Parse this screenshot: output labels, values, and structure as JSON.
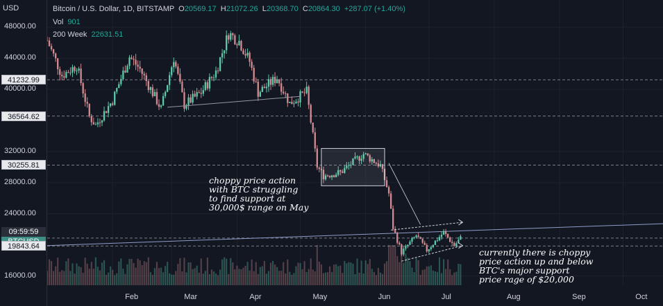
{
  "header": {
    "currency": "USD",
    "symbol_line": "Bitcoin / U.S. Dollar, 1D, BITSTAMP",
    "ohlc": {
      "O": "20569.17",
      "H": "21072.26",
      "L": "20368.70",
      "C": "20864.30",
      "change": "+287.07 (+1.40%)"
    },
    "vol_label": "Vol",
    "vol_value": "901",
    "ma_label": "200 Week",
    "ma_value": "22631.51"
  },
  "tags": [
    {
      "label": "41232.99",
      "price": 41232.99,
      "style": "light"
    },
    {
      "label": "36564.62",
      "price": 36564.62,
      "style": "light"
    },
    {
      "label": "30255.81",
      "price": 30255.81,
      "style": "light"
    },
    {
      "label": "09:59:59",
      "price": 20864.3,
      "style": "teal-top"
    },
    {
      "label": "BTCUSD",
      "price": 20864.3,
      "style": "teal-bottom"
    },
    {
      "label": "19843.64",
      "price": 19843.64,
      "style": "light"
    }
  ],
  "annotations": [
    {
      "lines": [
        "choppy price action",
        "with BTC struggling",
        "to find support at",
        " 30,000$ range on May"
      ]
    },
    {
      "lines": [
        "currently there is choppy",
        "price action up and below",
        "BTC's major support",
        " price rage of $20,000"
      ]
    }
  ],
  "colors": {
    "background": "#131722",
    "up": "#5dc9a9",
    "down": "#d28b90",
    "ma": "#8e9cc9",
    "grid": "#1e222d",
    "text": "#d1d4dc"
  },
  "chart_data": {
    "type": "candlestick",
    "x_ticks": [
      "Feb",
      "Mar",
      "Apr",
      "May",
      "Jun",
      "Jul",
      "Aug",
      "Sep",
      "Oct"
    ],
    "y_ticks": [
      16000,
      24000,
      28000,
      32000,
      40000,
      44000,
      48000
    ],
    "y_tick_labels": [
      "16000.00",
      "24000.00",
      "28000.00",
      "32000.00",
      "40000.00",
      "44000.00",
      "48000.00"
    ],
    "ylim": [
      14800,
      51500
    ],
    "x_range": [
      "2022-01-01",
      "2022-10-20"
    ],
    "horizontal_levels": [
      41232.99,
      36564.62,
      30255.81,
      20864.3,
      19843.64
    ],
    "trendline_support": [
      {
        "date": "2022-02-27",
        "price": 37700
      },
      {
        "date": "2022-05-01",
        "price": 39100
      }
    ],
    "ma_200_week": [
      {
        "date": "2022-01-01",
        "price": 19900
      },
      {
        "date": "2022-07-15",
        "price": 22631.51
      }
    ],
    "consolidation_box": {
      "from": "2022-05-11",
      "to": "2022-06-10",
      "low": 27600,
      "high": 32400
    },
    "channel_upper": [
      {
        "date": "2022-06-13",
        "price": 21900
      },
      {
        "date": "2022-07-17",
        "price": 22900
      }
    ],
    "channel_lower": [
      {
        "date": "2022-06-18",
        "price": 17900
      },
      {
        "date": "2022-07-17",
        "price": 19900
      }
    ],
    "arrow": [
      {
        "date": "2022-06-12",
        "price": 30500
      },
      {
        "date": "2022-06-27",
        "price": 22600
      }
    ],
    "closes_anchors": [
      [
        "2022-01-01",
        46300
      ],
      [
        "2022-01-08",
        41800
      ],
      [
        "2022-01-15",
        43100
      ],
      [
        "2022-01-21",
        36500
      ],
      [
        "2022-01-24",
        35400
      ],
      [
        "2022-02-01",
        38600
      ],
      [
        "2022-02-09",
        44200
      ],
      [
        "2022-02-14",
        42600
      ],
      [
        "2022-02-24",
        37500
      ],
      [
        "2022-03-02",
        44100
      ],
      [
        "2022-03-07",
        38000
      ],
      [
        "2022-03-15",
        39600
      ],
      [
        "2022-03-22",
        42300
      ],
      [
        "2022-03-28",
        47200
      ],
      [
        "2022-04-02",
        46200
      ],
      [
        "2022-04-07",
        43600
      ],
      [
        "2022-04-11",
        39600
      ],
      [
        "2022-04-20",
        41500
      ],
      [
        "2022-04-26",
        38200
      ],
      [
        "2022-05-04",
        39700
      ],
      [
        "2022-05-09",
        30100
      ],
      [
        "2022-05-12",
        28900
      ],
      [
        "2022-05-20",
        29300
      ],
      [
        "2022-05-31",
        31700
      ],
      [
        "2022-06-08",
        30200
      ],
      [
        "2022-06-12",
        26600
      ],
      [
        "2022-06-14",
        22200
      ],
      [
        "2022-06-18",
        19000
      ],
      [
        "2022-06-25",
        21200
      ],
      [
        "2022-06-30",
        19300
      ],
      [
        "2022-07-08",
        21600
      ],
      [
        "2022-07-13",
        19900
      ],
      [
        "2022-07-16",
        20864
      ]
    ]
  }
}
